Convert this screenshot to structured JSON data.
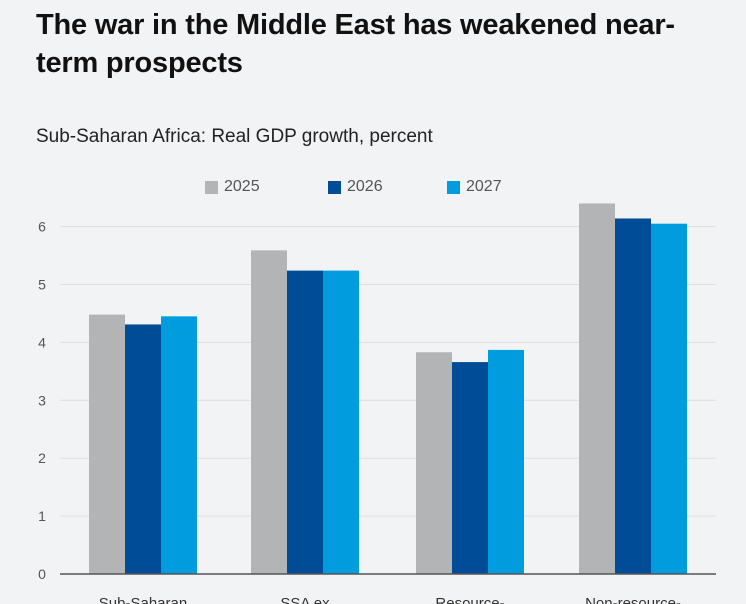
{
  "title": "The war in the Middle East has weakened near-term prospects",
  "chart_data": {
    "type": "bar",
    "title": "The war in the Middle East has weakened near-term prospects",
    "subtitle": "Sub-Saharan Africa: Real GDP growth, percent",
    "categories": [
      "Sub-Saharan",
      "SSA ex",
      "Resource-",
      "Non-resource-"
    ],
    "series": [
      {
        "name": "2025",
        "color": "#b3b4b5",
        "values": [
          4.48,
          5.59,
          3.83,
          6.4
        ]
      },
      {
        "name": "2026",
        "color": "#004c97",
        "values": [
          4.31,
          5.24,
          3.66,
          6.14
        ]
      },
      {
        "name": "2027",
        "color": "#009cde",
        "values": [
          4.45,
          5.24,
          3.87,
          6.05
        ]
      }
    ],
    "yticks": [
      0,
      1,
      2,
      3,
      4,
      5,
      6
    ],
    "ylim": [
      0,
      6.5
    ],
    "xlabel": "",
    "ylabel": "",
    "grid": true,
    "legend": "top-center"
  }
}
